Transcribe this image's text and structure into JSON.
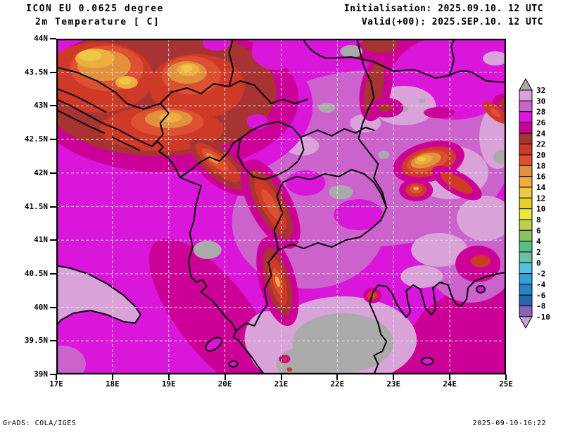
{
  "title_block": {
    "line1": "ICON EU 0.0625 degree",
    "line2": "2m Temperature [ C]"
  },
  "init_block": {
    "line1": "Initialisation: 2025.09.10. 12 UTC",
    "line2": "Valid(+00): 2025.SEP.10. 12 UTC"
  },
  "footer": {
    "left": "GrADS: COLA/IGES",
    "right": "2025-09-10-16:22"
  },
  "chart_data": {
    "type": "heatmap",
    "title": "2m Temperature [ C]",
    "model": "ICON EU 0.0625 degree",
    "init_time": "2025.09.10. 12 UTC",
    "valid_time": "2025.SEP.10. 12 UTC",
    "unit": "C",
    "projection": {
      "lon_range": [
        17,
        25
      ],
      "lat_range": [
        39,
        44
      ]
    },
    "x_axis": {
      "ticks": [
        {
          "value": 17,
          "label": "17E"
        },
        {
          "value": 18,
          "label": "18E"
        },
        {
          "value": 19,
          "label": "19E"
        },
        {
          "value": 20,
          "label": "20E"
        },
        {
          "value": 21,
          "label": "21E"
        },
        {
          "value": 22,
          "label": "22E"
        },
        {
          "value": 23,
          "label": "23E"
        },
        {
          "value": 24,
          "label": "24E"
        },
        {
          "value": 25,
          "label": "25E"
        }
      ]
    },
    "y_axis": {
      "ticks": [
        {
          "value": 44,
          "label": "44N"
        },
        {
          "value": 43.5,
          "label": "43.5N"
        },
        {
          "value": 43,
          "label": "43N"
        },
        {
          "value": 42.5,
          "label": "42.5N"
        },
        {
          "value": 42,
          "label": "42N"
        },
        {
          "value": 41.5,
          "label": "41.5N"
        },
        {
          "value": 41,
          "label": "41N"
        },
        {
          "value": 40.5,
          "label": "40.5N"
        },
        {
          "value": 40,
          "label": "40N"
        },
        {
          "value": 39.5,
          "label": "39.5N"
        },
        {
          "value": 39,
          "label": "39N"
        }
      ]
    },
    "grid": {
      "lat_lines": [
        43.5,
        43,
        42.5,
        42,
        41.5,
        41,
        40.5,
        40,
        39.5
      ],
      "lon_lines": [
        18,
        19,
        20,
        21,
        22,
        23,
        24
      ],
      "style": "dashed"
    },
    "colorbar": {
      "unit": "C",
      "levels": [
        32,
        30,
        28,
        26,
        24,
        22,
        20,
        18,
        16,
        14,
        12,
        10,
        8,
        6,
        4,
        2,
        0,
        -2,
        -4,
        -6,
        -8,
        -10
      ],
      "labels": [
        "32",
        "30",
        "28",
        "26",
        "24",
        "22",
        "20",
        "18",
        "16",
        "14",
        "12",
        "10",
        "8",
        "6",
        "4",
        "2",
        "0",
        "-2",
        "-4",
        "-6",
        "-8",
        "-10"
      ],
      "colors": [
        "#d9a3d9",
        "#cc63cc",
        "#d916d9",
        "#cc0096",
        "#a83333",
        "#cf3a28",
        "#dd5032",
        "#e1913e",
        "#eead3e",
        "#ecc847",
        "#e6d226",
        "#e8e83a",
        "#bdd04c",
        "#8ac45f",
        "#5abf85",
        "#66c2a2",
        "#55c0e4",
        "#389fd6",
        "#2a84c2",
        "#2168ae",
        "#8a63b5"
      ],
      "over_color": "#aaaaaa",
      "under_color": "#c6a3dc"
    },
    "sample_points": [
      {
        "lon": 17.3,
        "lat": 43.8,
        "t_c": 13
      },
      {
        "lon": 17.6,
        "lat": 43.6,
        "t_c": 15
      },
      {
        "lon": 18.3,
        "lat": 43.4,
        "t_c": 17
      },
      {
        "lon": 19.0,
        "lat": 43.6,
        "t_c": 21
      },
      {
        "lon": 19.9,
        "lat": 43.8,
        "t_c": 23
      },
      {
        "lon": 20.8,
        "lat": 43.8,
        "t_c": 27
      },
      {
        "lon": 21.6,
        "lat": 43.0,
        "t_c": 29
      },
      {
        "lon": 20.5,
        "lat": 42.35,
        "t_c": 31
      },
      {
        "lon": 21.9,
        "lat": 41.75,
        "t_c": 33
      },
      {
        "lon": 20.3,
        "lat": 41.9,
        "t_c": 21
      },
      {
        "lon": 20.1,
        "lat": 40.4,
        "t_c": 21
      },
      {
        "lon": 23.2,
        "lat": 42.25,
        "t_c": 13
      },
      {
        "lon": 23.3,
        "lat": 41.85,
        "t_c": 15
      },
      {
        "lon": 22.0,
        "lat": 39.6,
        "t_c": 33
      },
      {
        "lon": 18.6,
        "lat": 40.3,
        "t_c": 25
      },
      {
        "lon": 24.2,
        "lat": 39.6,
        "t_c": 25
      },
      {
        "lon": 17.5,
        "lat": 41.2,
        "t_c": 27
      },
      {
        "lon": 24.3,
        "lat": 42.9,
        "t_c": 23
      }
    ],
    "field_summary": "Filled-contour 2m temperature over the western Balkans. Warmest air (>32 C, gray) over northern Greece and the Vardar valley; widespread 26-32 C (magenta/orchid/plum) over lowlands and both seas; coolest values (12-24 C, yellow-orange-red) over the Dinaric Alps in the NW, the Albanian mountains and the Rila/Balkan mountains near 23.2E."
  }
}
